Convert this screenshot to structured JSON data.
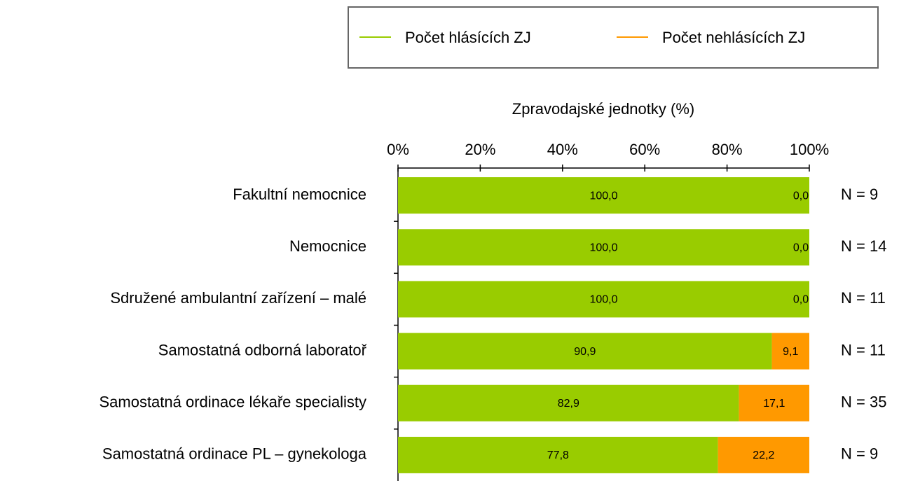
{
  "chart_data": {
    "type": "stacked_barh",
    "x_label": "Zpravodajské jednotky (%)",
    "categories": [
      "Fakultní nemocnice",
      "Nemocnice",
      "Sdružené ambulantní zařízení – malé",
      "Samostatná odborná laboratoř",
      "Samostatná ordinace lékaře specialisty",
      "Samostatná ordinace PL – gynekologa"
    ],
    "series": [
      {
        "name": "Počet hlásících ZJ",
        "color": "#99cc00",
        "values": [
          100,
          100,
          100,
          90.9,
          82.9,
          77.8
        ],
        "value_labels": [
          "100,0",
          "100,0",
          "100,0",
          "90,9",
          "82,9",
          "77,8"
        ]
      },
      {
        "name": "Počet nehlásících ZJ",
        "color": "#ff9900",
        "values": [
          0,
          0,
          0,
          9.1,
          17.1,
          22.2
        ],
        "value_labels": [
          "0,0",
          "0,0",
          "0,0",
          "9,1",
          "17,1",
          "22,2"
        ]
      }
    ],
    "n_labels": [
      "N = 9",
      "N = 14",
      "N = 11",
      "N = 11",
      "N = 35",
      "N = 9"
    ],
    "xlim": [
      0,
      100
    ],
    "xticks": [
      {
        "value": 0,
        "label": "0%"
      },
      {
        "value": 20,
        "label": "20%"
      },
      {
        "value": 40,
        "label": "40%"
      },
      {
        "value": 60,
        "label": "60%"
      },
      {
        "value": 80,
        "label": "80%"
      },
      {
        "value": 100,
        "label": "100%"
      }
    ],
    "legend": "top"
  }
}
